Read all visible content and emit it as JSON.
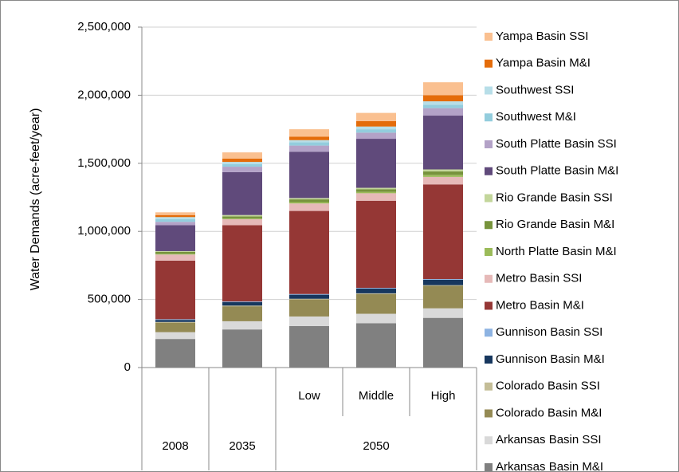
{
  "chart_data": {
    "type": "stacked_bar",
    "y_axis_label": "Water Demands (acre-feet/year)",
    "categories": [
      "2008",
      "2035",
      "Low",
      "Middle",
      "High"
    ],
    "category_groups": [
      {
        "label": "2050",
        "categories": [
          "Low",
          "Middle",
          "High"
        ]
      }
    ],
    "ylim": [
      0,
      2500000
    ],
    "yticks": [
      0,
      {
        "value": 500000,
        "label": "500,000"
      },
      {
        "value": 1000000,
        "label": "1,000,000"
      },
      {
        "value": 1500000,
        "label": "1,500,000"
      },
      {
        "value": 2000000,
        "label": "2,000,000"
      },
      {
        "value": 2500000,
        "label": "2,500,000"
      }
    ],
    "grid": true,
    "legend": "right",
    "series": [
      {
        "name": "Arkansas Basin M&I",
        "color": "#808080",
        "values": [
          210000,
          280000,
          305000,
          325000,
          365000
        ]
      },
      {
        "name": "Arkansas Basin SSI",
        "color": "#d9d9d9",
        "values": [
          50000,
          60000,
          70000,
          70000,
          70000
        ]
      },
      {
        "name": "Colorado Basin M&I",
        "color": "#948a54",
        "values": [
          70000,
          110000,
          125000,
          145000,
          165000
        ]
      },
      {
        "name": "Colorado Basin SSI",
        "color": "#c4bd97",
        "values": [
          5000,
          5000,
          5000,
          5000,
          5000
        ]
      },
      {
        "name": "Gunnison Basin M&I",
        "color": "#17375e",
        "values": [
          15000,
          25000,
          30000,
          35000,
          40000
        ]
      },
      {
        "name": "Gunnison Basin SSI",
        "color": "#8db3e2",
        "values": [
          5000,
          5000,
          5000,
          5000,
          5000
        ]
      },
      {
        "name": "Metro Basin M&I",
        "color": "#953735",
        "values": [
          430000,
          560000,
          610000,
          640000,
          695000
        ]
      },
      {
        "name": "Metro Basin SSI",
        "color": "#e6b9b8",
        "values": [
          45000,
          45000,
          55000,
          55000,
          55000
        ]
      },
      {
        "name": "North Platte Basin M&I",
        "color": "#9bbb59",
        "values": [
          5000,
          5000,
          10000,
          10000,
          15000
        ]
      },
      {
        "name": "Rio Grande Basin M&I",
        "color": "#77933c",
        "values": [
          15000,
          15000,
          20000,
          20000,
          25000
        ]
      },
      {
        "name": "Rio Grande Basin SSI",
        "color": "#c3d69b",
        "values": [
          5000,
          10000,
          10000,
          10000,
          15000
        ]
      },
      {
        "name": "South Platte Basin M&I",
        "color": "#604a7b",
        "values": [
          190000,
          315000,
          340000,
          360000,
          395000
        ]
      },
      {
        "name": "South Platte Basin SSI",
        "color": "#b3a2c7",
        "values": [
          25000,
          40000,
          45000,
          45000,
          55000
        ]
      },
      {
        "name": "Southwest M&I",
        "color": "#93cddd",
        "values": [
          20000,
          20000,
          25000,
          25000,
          25000
        ]
      },
      {
        "name": "Southwest SSI",
        "color": "#b7dee8",
        "values": [
          15000,
          15000,
          15000,
          20000,
          25000
        ]
      },
      {
        "name": "Yampa Basin M&I",
        "color": "#e46c0a",
        "values": [
          15000,
          25000,
          25000,
          40000,
          45000
        ]
      },
      {
        "name": "Yampa Basin SSI",
        "color": "#fac090",
        "values": [
          20000,
          45000,
          55000,
          60000,
          95000
        ]
      }
    ]
  }
}
